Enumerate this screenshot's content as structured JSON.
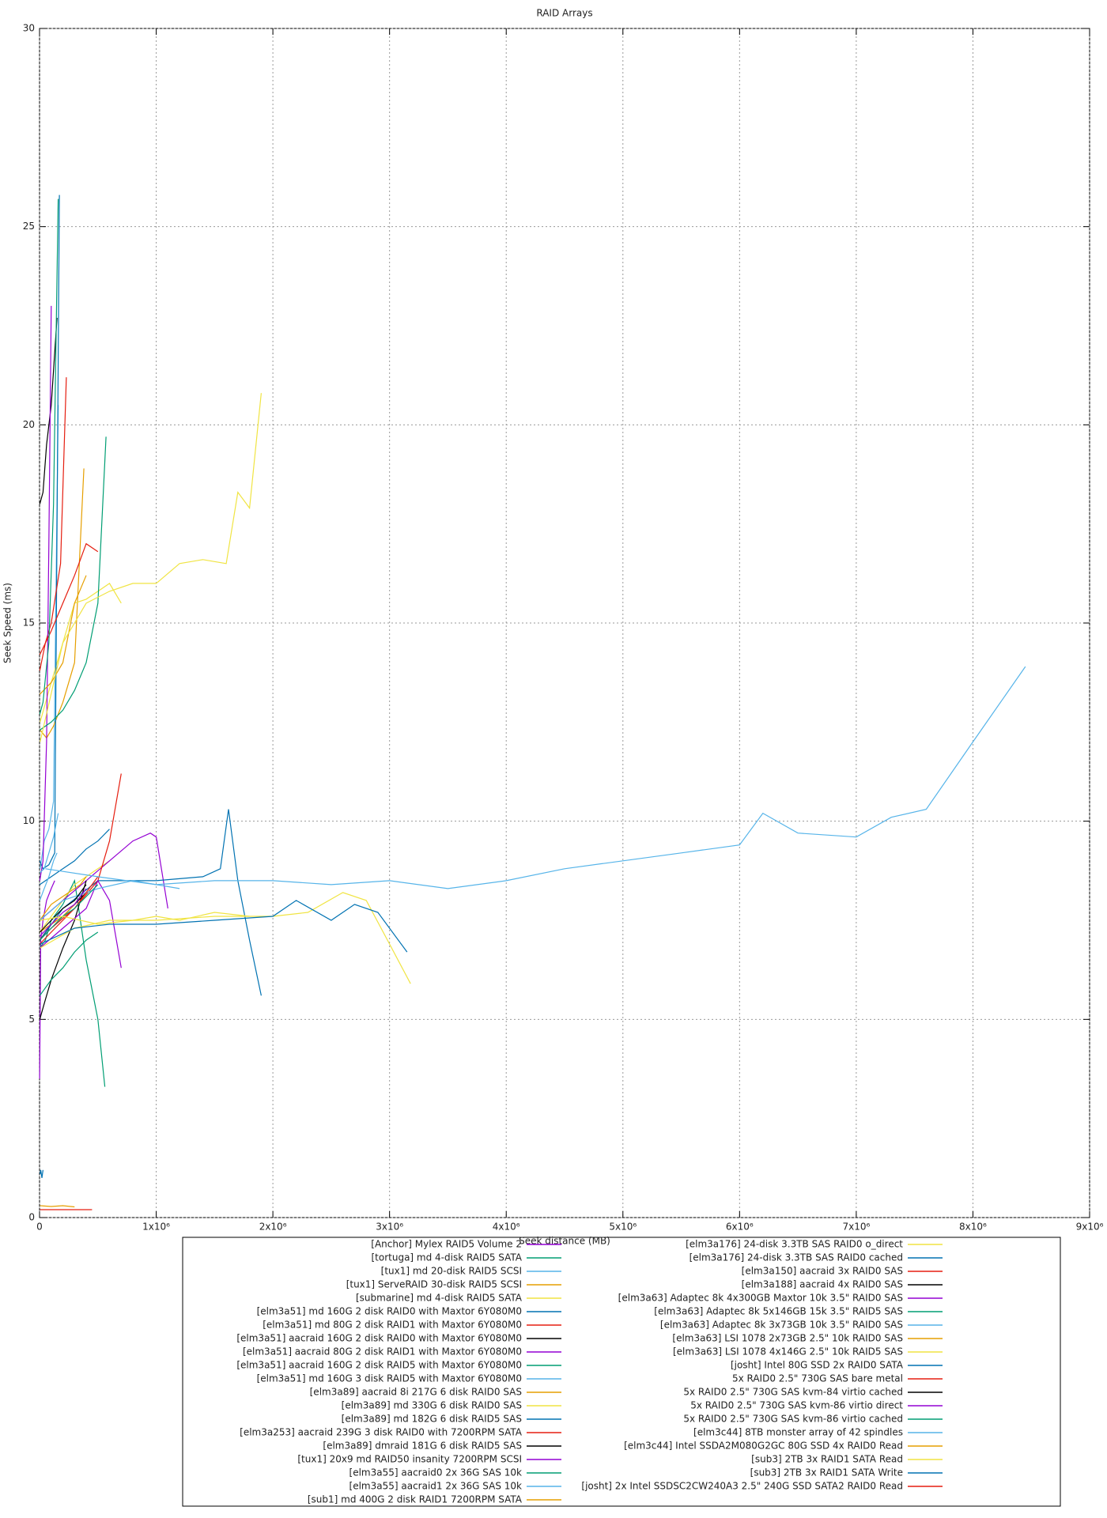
{
  "chart_data": {
    "type": "line",
    "title": "RAID Arrays",
    "x_label": "Seek distance (MB)",
    "y_label": "Seek Speed (ms)",
    "xlim": [
      0,
      9000000
    ],
    "ylim": [
      0,
      30
    ],
    "grid": true,
    "legend": "bottom",
    "xticks": [
      0,
      {
        "value": 1000000,
        "label": "1x10⁶"
      },
      {
        "value": 2000000,
        "label": "2x10⁶"
      },
      {
        "value": 3000000,
        "label": "3x10⁶"
      },
      {
        "value": 4000000,
        "label": "4x10⁶"
      },
      {
        "value": 5000000,
        "label": "5x10⁶"
      },
      {
        "value": 6000000,
        "label": "6x10⁶"
      },
      {
        "value": 7000000,
        "label": "7x10⁶"
      },
      {
        "value": 8000000,
        "label": "8x10⁶"
      },
      {
        "value": 9000000,
        "label": "9x10⁶"
      }
    ],
    "yticks": [
      0,
      5,
      10,
      15,
      20,
      25,
      30
    ],
    "series": [
      {
        "name": "[Anchor] Mylex RAID5 Volume 2",
        "color": "#9400d3",
        "x": [
          1000,
          10000,
          30000,
          60000,
          100000,
          130000
        ],
        "values": [
          3.5,
          7.0,
          7.5,
          8.0,
          8.3,
          8.5
        ]
      },
      {
        "name": "[tortuga] md 4-disk RAID5 SATA",
        "color": "#009e73",
        "x": [
          1000,
          50000,
          100000,
          200000,
          300000,
          400000,
          500000,
          560000
        ],
        "values": [
          6.8,
          7.0,
          7.5,
          7.9,
          8.5,
          6.5,
          5.0,
          3.3
        ]
      },
      {
        "name": "[tux1] md 20-disk RAID5 SCSI",
        "color": "#56b4e9",
        "x": [
          5000,
          40000,
          80000,
          120000,
          160000
        ],
        "values": [
          8.8,
          9.5,
          9.8,
          10.5,
          20.5
        ]
      },
      {
        "name": "[tux1] ServeRAID 30-disk RAID5 SCSI",
        "color": "#e69f00",
        "x": [
          5000,
          60000,
          120000,
          200000,
          300000,
          380000
        ],
        "values": [
          12.3,
          12.1,
          12.4,
          13.0,
          14.0,
          18.9
        ]
      },
      {
        "name": "[submarine] md 4-disk RAID5 SATA",
        "color": "#f0e442",
        "x": [
          5000,
          100000,
          200000,
          300000,
          400000,
          500000,
          600000,
          700000
        ],
        "values": [
          12.5,
          13.5,
          14.5,
          15.5,
          15.6,
          15.8,
          16.0,
          15.5
        ]
      },
      {
        "name": "[elm3a51] md 160G 2 disk RAID0 with Maxtor 6Y080M0",
        "color": "#0072b2",
        "x": [
          2000,
          30000,
          80000,
          130000,
          170000
        ],
        "values": [
          9.0,
          8.8,
          8.9,
          9.2,
          25.8
        ]
      },
      {
        "name": "[elm3a51] md 80G 2 disk RAID1 with Maxtor 6Y080M0",
        "color": "#e51e10",
        "x": [
          2000,
          50000,
          100000,
          180000,
          230000
        ],
        "values": [
          13.8,
          14.5,
          15.0,
          16.5,
          21.2
        ]
      },
      {
        "name": "[elm3a51] aacraid 160G 2 disk RAID0 with Maxtor 6Y080M0",
        "color": "#000000",
        "x": [
          2000,
          30000,
          60000,
          100000,
          150000
        ],
        "values": [
          18.0,
          18.3,
          19.5,
          20.5,
          22.7
        ]
      },
      {
        "name": "[elm3a51] aacraid 80G 2 disk RAID1 with Maxtor 6Y080M0",
        "color": "#9400d3",
        "x": [
          2000,
          30000,
          60000,
          80000,
          100000
        ],
        "values": [
          8.5,
          9.0,
          12,
          17,
          23.0
        ]
      },
      {
        "name": "[elm3a51] aacraid 160G 2 disk RAID5 with Maxtor 6Y080M0",
        "color": "#009e73",
        "x": [
          2000,
          100000,
          200000,
          300000,
          400000,
          500000,
          570000
        ],
        "values": [
          12.3,
          12.5,
          12.8,
          13.3,
          14.0,
          15.5,
          19.7
        ]
      },
      {
        "name": "[elm3a51] md 160G 3 disk RAID5 with Maxtor 6Y080M0",
        "color": "#56b4e9",
        "x": [
          2000,
          40000,
          80000,
          120000,
          160000
        ],
        "values": [
          8.7,
          8.8,
          9.2,
          9.6,
          10.2
        ]
      },
      {
        "name": "[elm3a89] aacraid 8i 217G 6 disk RAID0 SAS",
        "color": "#e69f00",
        "x": [
          2000,
          100000,
          200000,
          300000,
          400000
        ],
        "values": [
          13.2,
          13.5,
          14.0,
          15.5,
          16.2
        ]
      },
      {
        "name": "[elm3a89] md 330G 6 disk RAID0 SAS",
        "color": "#f0e442",
        "x": [
          2000,
          100000,
          200000,
          300000,
          400000,
          500000,
          600000
        ],
        "values": [
          7.2,
          7.6,
          8.0,
          8.4,
          8.6,
          8.8,
          9.0
        ]
      },
      {
        "name": "[elm3a89] md 182G 6 disk RAID5 SAS",
        "color": "#0072b2",
        "x": [
          2000,
          100000,
          200000,
          300000,
          400000,
          500000,
          600000
        ],
        "values": [
          8.4,
          8.6,
          8.8,
          9.0,
          9.3,
          9.5,
          9.8
        ]
      },
      {
        "name": "[elm3a253] aacraid 239G 3 disk RAID0 with 7200RPM SATA",
        "color": "#e51e10",
        "x": [
          2000,
          100000,
          200000,
          300000,
          400000,
          500000
        ],
        "values": [
          14.2,
          14.8,
          15.5,
          16.2,
          17.0,
          16.8
        ]
      },
      {
        "name": "[elm3a89] dmraid 181G 6 disk RAID5 SAS",
        "color": "#000000",
        "x": [
          2000,
          100000,
          200000,
          300000,
          400000
        ],
        "values": [
          7.0,
          7.4,
          7.6,
          7.9,
          8.2
        ]
      },
      {
        "name": "[tux1] 20x9 md RAID50 insanity 7200RPM SCSI",
        "color": "#9400d3",
        "x": [
          2000,
          200000,
          400000,
          600000,
          800000,
          950000,
          1000000,
          1100000
        ],
        "values": [
          7.5,
          8.0,
          8.5,
          9.0,
          9.5,
          9.7,
          9.6,
          7.8
        ]
      },
      {
        "name": "[elm3a55] aacraid0 2x 36G SAS 10k",
        "color": "#009e73",
        "x": [
          2000,
          30000,
          80000,
          120000,
          160000
        ],
        "values": [
          12.7,
          13.0,
          14.5,
          18,
          25.7
        ]
      },
      {
        "name": "[elm3a55] aacraid1 2x 36G SAS 10k",
        "color": "#56b4e9",
        "x": [
          2000,
          40000,
          80000,
          120000,
          150000
        ],
        "values": [
          8.0,
          8.3,
          8.6,
          9.0,
          9.2
        ]
      },
      {
        "name": "[sub1] md 400G 2 disk RAID1 7200RPM SATA",
        "color": "#e69f00",
        "x": [
          2000,
          50000,
          100000,
          150000,
          200000,
          250000,
          300000,
          350000,
          400000
        ],
        "values": [
          7.5,
          7.7,
          7.9,
          8.0,
          8.1,
          8.2,
          8.3,
          8.4,
          8.6
        ]
      },
      {
        "name": "[elm3a176] 24-disk 3.3TB SAS RAID0 o_direct",
        "color": "#f0e442",
        "x": [
          5000,
          200000,
          400000,
          600000,
          800000,
          1000000,
          1200000,
          1400000,
          1600000,
          1700000,
          1800000,
          1900000
        ],
        "values": [
          12.0,
          14.5,
          15.5,
          15.8,
          16.0,
          16.0,
          16.5,
          16.6,
          16.5,
          18.3,
          17.9,
          20.8
        ]
      },
      {
        "name": "[elm3a176] 24-disk 3.3TB SAS RAID0 cached",
        "color": "#0072b2",
        "x": [
          5000,
          200000,
          500000,
          1000000,
          1400000,
          1550000,
          1620000,
          1700000,
          1800000,
          1900000
        ],
        "values": [
          7.0,
          7.8,
          8.5,
          8.5,
          8.6,
          8.8,
          10.3,
          8.5,
          7.0,
          5.6
        ]
      },
      {
        "name": "[elm3a150] aacraid 3x RAID0 SAS",
        "color": "#e51e10",
        "x": [
          2000,
          100000,
          300000,
          500000,
          600000,
          700000
        ],
        "values": [
          7.0,
          7.3,
          7.8,
          8.5,
          9.5,
          11.2
        ]
      },
      {
        "name": "[elm3a188] aacraid 4x RAID0 SAS",
        "color": "#000000",
        "x": [
          2000,
          50000,
          100000,
          200000,
          300000,
          400000
        ],
        "values": [
          5.0,
          5.5,
          6.0,
          6.8,
          7.5,
          8.5
        ]
      },
      {
        "name": "[elm3a63] Adaptec 8k 4x300GB Maxtor 10k 3.5\" RAID0 SAS",
        "color": "#9400d3",
        "x": [
          2000,
          200000,
          400000,
          500000,
          600000,
          700000
        ],
        "values": [
          6.8,
          7.3,
          7.8,
          8.5,
          8.0,
          6.3
        ]
      },
      {
        "name": "[elm3a63] Adaptec 8k 5x146GB 15k 3.5\" RAID5 SAS",
        "color": "#009e73",
        "x": [
          2000,
          100000,
          200000,
          300000,
          400000,
          500000
        ],
        "values": [
          5.6,
          6.0,
          6.3,
          6.7,
          7.0,
          7.2
        ]
      },
      {
        "name": "[elm3a63] Adaptec 8k 3x73GB 10k 3.5\" RAID0 SAS",
        "color": "#56b4e9",
        "x": [
          2000,
          200000,
          500000,
          800000,
          1000000,
          1200000
        ],
        "values": [
          7.5,
          8.0,
          8.3,
          8.5,
          8.4,
          8.3
        ]
      },
      {
        "name": "[elm3a63] LSI 1078 2x73GB 2.5\" 10k RAID0 SAS",
        "color": "#e69f00",
        "x": [
          2000,
          100000,
          200000,
          300000,
          350000
        ],
        "values": [
          7.2,
          7.4,
          7.6,
          7.9,
          8.1
        ]
      },
      {
        "name": "[elm3a63] LSI 1078 4x146G 2.5\" 10k RAID5 SAS",
        "color": "#f0e442",
        "x": [
          5000,
          300000,
          600000,
          1000000,
          1500000,
          2000000,
          2300000,
          2600000,
          2800000,
          3000000,
          3180000
        ],
        "values": [
          6.8,
          7.3,
          7.5,
          7.5,
          7.6,
          7.6,
          7.7,
          8.2,
          8.0,
          6.9,
          5.9
        ]
      },
      {
        "name": "[josht] Intel 80G SSD 2x RAID0 SATA",
        "color": "#0072b2",
        "x": [
          5000,
          10000,
          20000,
          30000
        ],
        "values": [
          1.1,
          1.2,
          1.0,
          1.2
        ]
      },
      {
        "name": "5x RAID0 2.5\" 730G SAS bare metal",
        "color": "#e51e10",
        "x": [
          2000,
          100000,
          200000,
          300000,
          400000,
          500000
        ],
        "values": [
          6.9,
          7.2,
          7.5,
          7.8,
          8.2,
          8.6
        ]
      },
      {
        "name": "5x RAID0 2.5\" 730G SAS kvm-84 virtio cached",
        "color": "#000000",
        "x": [
          2000,
          100000,
          200000,
          300000,
          400000
        ],
        "values": [
          7.2,
          7.5,
          7.8,
          8.0,
          8.4
        ]
      },
      {
        "name": "5x RAID0 2.5\" 730G SAS kvm-86 virtio direct",
        "color": "#9400d3",
        "x": [
          2000,
          100000,
          200000,
          300000,
          400000
        ],
        "values": [
          7.1,
          7.4,
          7.7,
          7.9,
          8.3
        ]
      },
      {
        "name": "5x RAID0 2.5\" 730G SAS kvm-86 virtio cached",
        "color": "#009e73",
        "x": [
          2000,
          100000,
          200000,
          300000,
          400000,
          500000
        ],
        "values": [
          7.0,
          7.3,
          7.6,
          7.8,
          8.1,
          8.4
        ]
      },
      {
        "name": "[elm3c44] 8TB monster array of 42 spindles",
        "color": "#56b4e9",
        "x": [
          50000,
          500000,
          1000000,
          1500000,
          2000000,
          2500000,
          3000000,
          3500000,
          4000000,
          4500000,
          5000000,
          5500000,
          6000000,
          6200000,
          6500000,
          7000000,
          7300000,
          7600000,
          8000000,
          8450000
        ],
        "values": [
          8.8,
          8.6,
          8.4,
          8.5,
          8.5,
          8.4,
          8.5,
          8.3,
          8.5,
          8.8,
          9.0,
          9.2,
          9.4,
          10.2,
          9.7,
          9.6,
          10.1,
          10.3,
          12.0,
          13.9
        ]
      },
      {
        "name": "[elm3c44] Intel SSDA2M080G2GC 80G SSD 4x RAID0 Read",
        "color": "#e69f00",
        "x": [
          5000,
          100000,
          200000,
          300000
        ],
        "values": [
          0.3,
          0.28,
          0.3,
          0.27
        ]
      },
      {
        "name": "[sub3] 2TB 3x RAID1 SATA Read",
        "color": "#f0e442",
        "x": [
          5000,
          200000,
          500000,
          800000,
          1000000,
          1200000,
          1500000,
          1800000
        ],
        "values": [
          7.5,
          7.6,
          7.4,
          7.5,
          7.6,
          7.5,
          7.7,
          7.6
        ]
      },
      {
        "name": "[sub3] 2TB 3x RAID1 SATA Write",
        "color": "#0072b2",
        "x": [
          5000,
          300000,
          600000,
          1000000,
          1500000,
          2000000,
          2200000,
          2500000,
          2700000,
          2900000,
          3150000
        ],
        "values": [
          6.9,
          7.3,
          7.4,
          7.4,
          7.5,
          7.6,
          8.0,
          7.5,
          7.9,
          7.7,
          6.7
        ]
      },
      {
        "name": "[josht] 2x Intel SSDSC2CW240A3 2.5\" 240G SSD SATA2 RAID0 Read",
        "color": "#e51e10",
        "x": [
          5000,
          100000,
          200000,
          300000,
          450000
        ],
        "values": [
          0.2,
          0.2,
          0.2,
          0.2,
          0.2
        ]
      }
    ]
  }
}
